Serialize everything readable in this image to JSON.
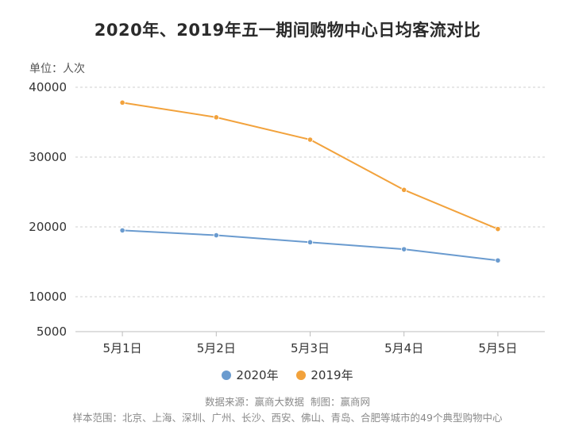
{
  "chart_data": {
    "type": "line",
    "title": "2020年、2019年五一期间购物中心日均客流对比",
    "unit_label": "单位：人次",
    "categories": [
      "5月1日",
      "5月2日",
      "5月3日",
      "5月4日",
      "5月5日"
    ],
    "yticks": [
      5000,
      10000,
      20000,
      30000,
      40000
    ],
    "ylim": [
      5000,
      40000
    ],
    "grid": true,
    "legend_position": "bottom",
    "series": [
      {
        "name": "2020年",
        "color": "#6a9bcf",
        "values": [
          19500,
          18800,
          17800,
          16800,
          15200
        ]
      },
      {
        "name": "2019年",
        "color": "#f2a23c",
        "values": [
          37800,
          35700,
          32500,
          25300,
          19700
        ]
      }
    ]
  },
  "footer": {
    "source": "数据来源：赢商大数据",
    "credit": "制图：赢商网",
    "sample": "样本范围：北京、上海、深圳、广州、长沙、西安、佛山、青岛、合肥等城市的49个典型购物中心"
  }
}
